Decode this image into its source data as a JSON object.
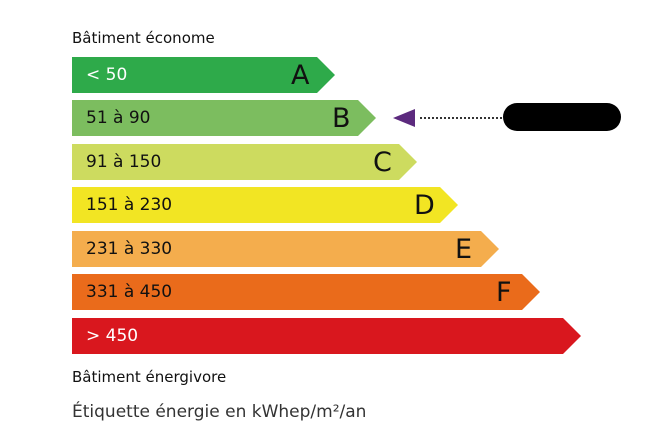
{
  "top_label": "Bâtiment économe",
  "bottom_label": "Bâtiment énergivore",
  "footer": "Étiquette énergie en kWhep/m²/an",
  "classes": [
    {
      "letter": "A",
      "range": "< 50",
      "color": "#2eaa4a",
      "text_color": "#ffffff"
    },
    {
      "letter": "B",
      "range": "51 à 90",
      "color": "#7cbd5f",
      "text_color": "#111111"
    },
    {
      "letter": "C",
      "range": "91 à 150",
      "color": "#cddb5f",
      "text_color": "#111111"
    },
    {
      "letter": "D",
      "range": "151 à 230",
      "color": "#f2e523",
      "text_color": "#111111"
    },
    {
      "letter": "E",
      "range": "231 à 330",
      "color": "#f4ad4d",
      "text_color": "#111111"
    },
    {
      "letter": "F",
      "range": "331 à 450",
      "color": "#ea6b1b",
      "text_color": "#111111"
    },
    {
      "letter": "",
      "range": "> 450",
      "color": "#d9171e",
      "text_color": "#ffffff"
    }
  ],
  "indicator": {
    "class": "B",
    "color": "#5c2a7e"
  }
}
